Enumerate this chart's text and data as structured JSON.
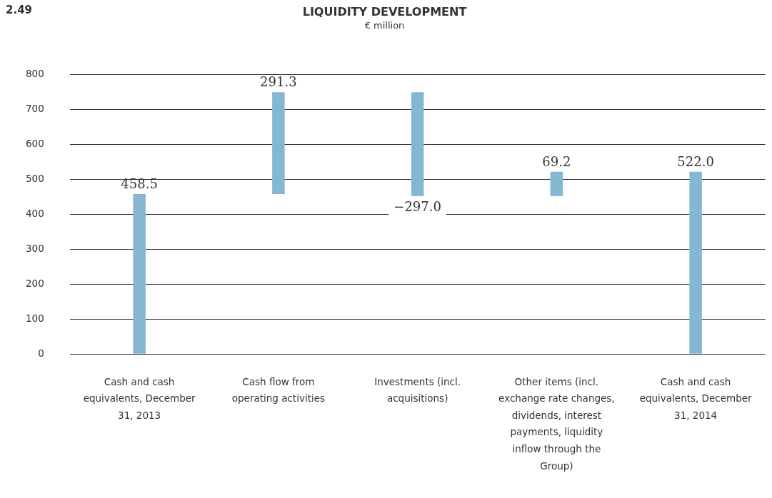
{
  "chart_data": {
    "type": "bar",
    "title": "LIQUIDITY DEVELOPMENT",
    "subtitle": "€ million",
    "annotations": [
      "2.49"
    ],
    "categories": [
      "Cash and cash equivalents, December 31, 2013",
      "Cash flow from operating activities",
      "Investments (incl. acquisitions)",
      "Other items (incl. exchange rate changes, dividends, interest payments, liquidity inflow through the Group)",
      "Cash and cash equivalents, December 31, 2014"
    ],
    "values": [
      458.5,
      291.3,
      -297.0,
      69.2,
      522.0
    ],
    "base": [
      0,
      458.5,
      749.8,
      452.8,
      0
    ],
    "value_labels": [
      "458.5",
      "291.3",
      "−297.0",
      "69.2",
      "522.0"
    ],
    "color": "#85b8d0",
    "ylim": [
      0,
      800
    ],
    "yticks": [
      0,
      100,
      200,
      300,
      400,
      500,
      600,
      700,
      800
    ],
    "grid": "y",
    "legend": false
  }
}
